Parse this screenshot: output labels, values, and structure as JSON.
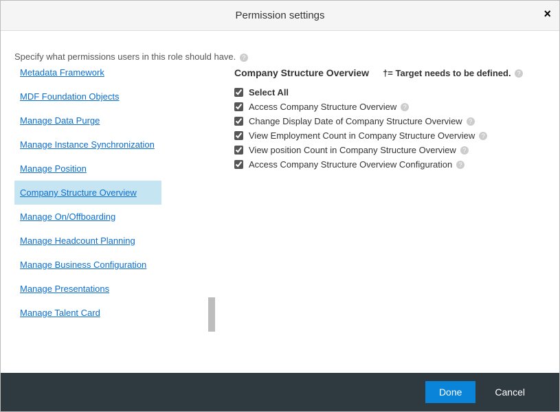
{
  "dialog": {
    "title": "Permission settings",
    "close_glyph": "×"
  },
  "intro": "Specify what permissions users in this role should have.",
  "help_glyph": "?",
  "sidebar": {
    "items": [
      {
        "label": "Metadata Framework",
        "selected": false
      },
      {
        "label": "MDF Foundation Objects",
        "selected": false
      },
      {
        "label": "Manage Data Purge",
        "selected": false
      },
      {
        "label": "Manage Instance Synchronization",
        "selected": false
      },
      {
        "label": "Manage Position",
        "selected": false
      },
      {
        "label": "Company Structure Overview",
        "selected": true
      },
      {
        "label": "Manage On/Offboarding",
        "selected": false
      },
      {
        "label": "Manage Headcount Planning",
        "selected": false
      },
      {
        "label": "Manage Business Configuration",
        "selected": false
      },
      {
        "label": "Manage Presentations",
        "selected": false
      },
      {
        "label": "Manage Talent Card",
        "selected": false
      }
    ]
  },
  "content": {
    "section_title": "Company Structure Overview",
    "target_note": "†= Target needs to be defined.",
    "select_all_label": "Select All",
    "permissions": [
      {
        "label": "Access Company Structure Overview",
        "checked": true,
        "help": true
      },
      {
        "label": "Change Display Date of Company Structure Overview",
        "checked": true,
        "help": true
      },
      {
        "label": "View Employment Count in Company Structure Overview",
        "checked": true,
        "help": true
      },
      {
        "label": "View position Count in Company Structure Overview",
        "checked": true,
        "help": true
      },
      {
        "label": "Access Company Structure Overview Configuration",
        "checked": true,
        "help": true
      }
    ]
  },
  "footer": {
    "done": "Done",
    "cancel": "Cancel"
  },
  "colors": {
    "link": "#0a6ed1",
    "selected_bg": "#c6e5f2",
    "footer_bg": "#2f3a40",
    "primary_btn": "#0a84d8"
  }
}
